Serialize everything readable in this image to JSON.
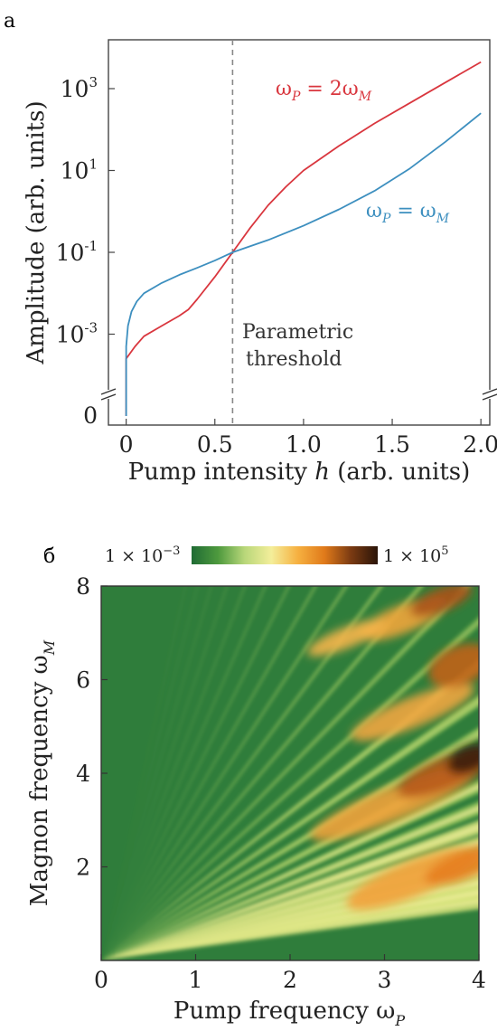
{
  "panels": {
    "a": {
      "letter": "а"
    },
    "b": {
      "letter": "б"
    }
  },
  "chart_data": [
    {
      "type": "line",
      "xlabel_main": "Pump intensity ",
      "xlabel_italic": "h",
      "xlabel_tail": " (arb. units)",
      "ylabel": "Amplitude (arb. units)",
      "xlim": [
        -0.1,
        2.05
      ],
      "y_scale": "log with axis break below 10^-3",
      "x_ticks": [
        "0",
        "0.5",
        "1.0",
        "1.5",
        "2.0"
      ],
      "x_tick_values": [
        0,
        0.5,
        1.0,
        1.5,
        2.0
      ],
      "y_ticks": [
        {
          "base": "10",
          "exp": "3",
          "logv": 3
        },
        {
          "base": "10",
          "exp": "1",
          "logv": 1
        },
        {
          "base": "10",
          "exp": "-1",
          "logv": -1
        },
        {
          "base": "10",
          "exp": "-3",
          "logv": -3
        }
      ],
      "y_zero_label": "0",
      "threshold": {
        "x": 0.6,
        "line1": "Parametric",
        "line2": "threshold"
      },
      "series": [
        {
          "name_omega": "ω",
          "name_sub_p": "P",
          "name_eq": " = 2ω",
          "name_sub_m": "M",
          "color": "#d9363e",
          "points": [
            [
              0.0,
              -3.6
            ],
            [
              0.05,
              -3.3
            ],
            [
              0.1,
              -3.05
            ],
            [
              0.2,
              -2.8
            ],
            [
              0.3,
              -2.55
            ],
            [
              0.35,
              -2.4
            ],
            [
              0.4,
              -2.15
            ],
            [
              0.5,
              -1.6
            ],
            [
              0.6,
              -1.0
            ],
            [
              0.7,
              -0.4
            ],
            [
              0.8,
              0.15
            ],
            [
              0.9,
              0.6
            ],
            [
              1.0,
              1.0
            ],
            [
              1.2,
              1.6
            ],
            [
              1.4,
              2.15
            ],
            [
              1.6,
              2.65
            ],
            [
              1.8,
              3.15
            ],
            [
              2.0,
              3.65
            ]
          ]
        },
        {
          "name_omega": "ω",
          "name_sub_p": "P",
          "name_eq": " = ω",
          "name_sub_m": "M",
          "color": "#3d8fbf",
          "points": [
            [
              0.0,
              -3.3
            ],
            [
              0.01,
              -2.8
            ],
            [
              0.03,
              -2.45
            ],
            [
              0.06,
              -2.2
            ],
            [
              0.1,
              -2.0
            ],
            [
              0.2,
              -1.75
            ],
            [
              0.3,
              -1.55
            ],
            [
              0.4,
              -1.38
            ],
            [
              0.5,
              -1.2
            ],
            [
              0.6,
              -1.0
            ],
            [
              0.8,
              -0.7
            ],
            [
              1.0,
              -0.35
            ],
            [
              1.2,
              0.05
            ],
            [
              1.4,
              0.5
            ],
            [
              1.6,
              1.05
            ],
            [
              1.8,
              1.7
            ],
            [
              2.0,
              2.4
            ]
          ]
        }
      ]
    },
    {
      "type": "heatmap",
      "xlabel_main": "Pump frequency ω",
      "xlabel_sub": "P",
      "ylabel_main": "Magnon frequency ω",
      "ylabel_sub": "M",
      "xlim": [
        0,
        4
      ],
      "ylim": [
        0,
        8
      ],
      "x_ticks": [
        "0",
        "1",
        "2",
        "3",
        "4"
      ],
      "x_tick_values": [
        0,
        1,
        2,
        3,
        4
      ],
      "y_ticks": [
        "2",
        "4",
        "6",
        "8"
      ],
      "y_tick_values": [
        2,
        4,
        6,
        8
      ],
      "colorbar": {
        "min_label": "1 × 10",
        "min_exp": "−3",
        "max_label": "1 × 10",
        "max_exp": "5",
        "colors": [
          "#1f6b34",
          "#4e9a3e",
          "#b9d77a",
          "#f4ee9a",
          "#f6b040",
          "#e07a1a",
          "#7a3a12",
          "#2a1408"
        ]
      }
    }
  ]
}
